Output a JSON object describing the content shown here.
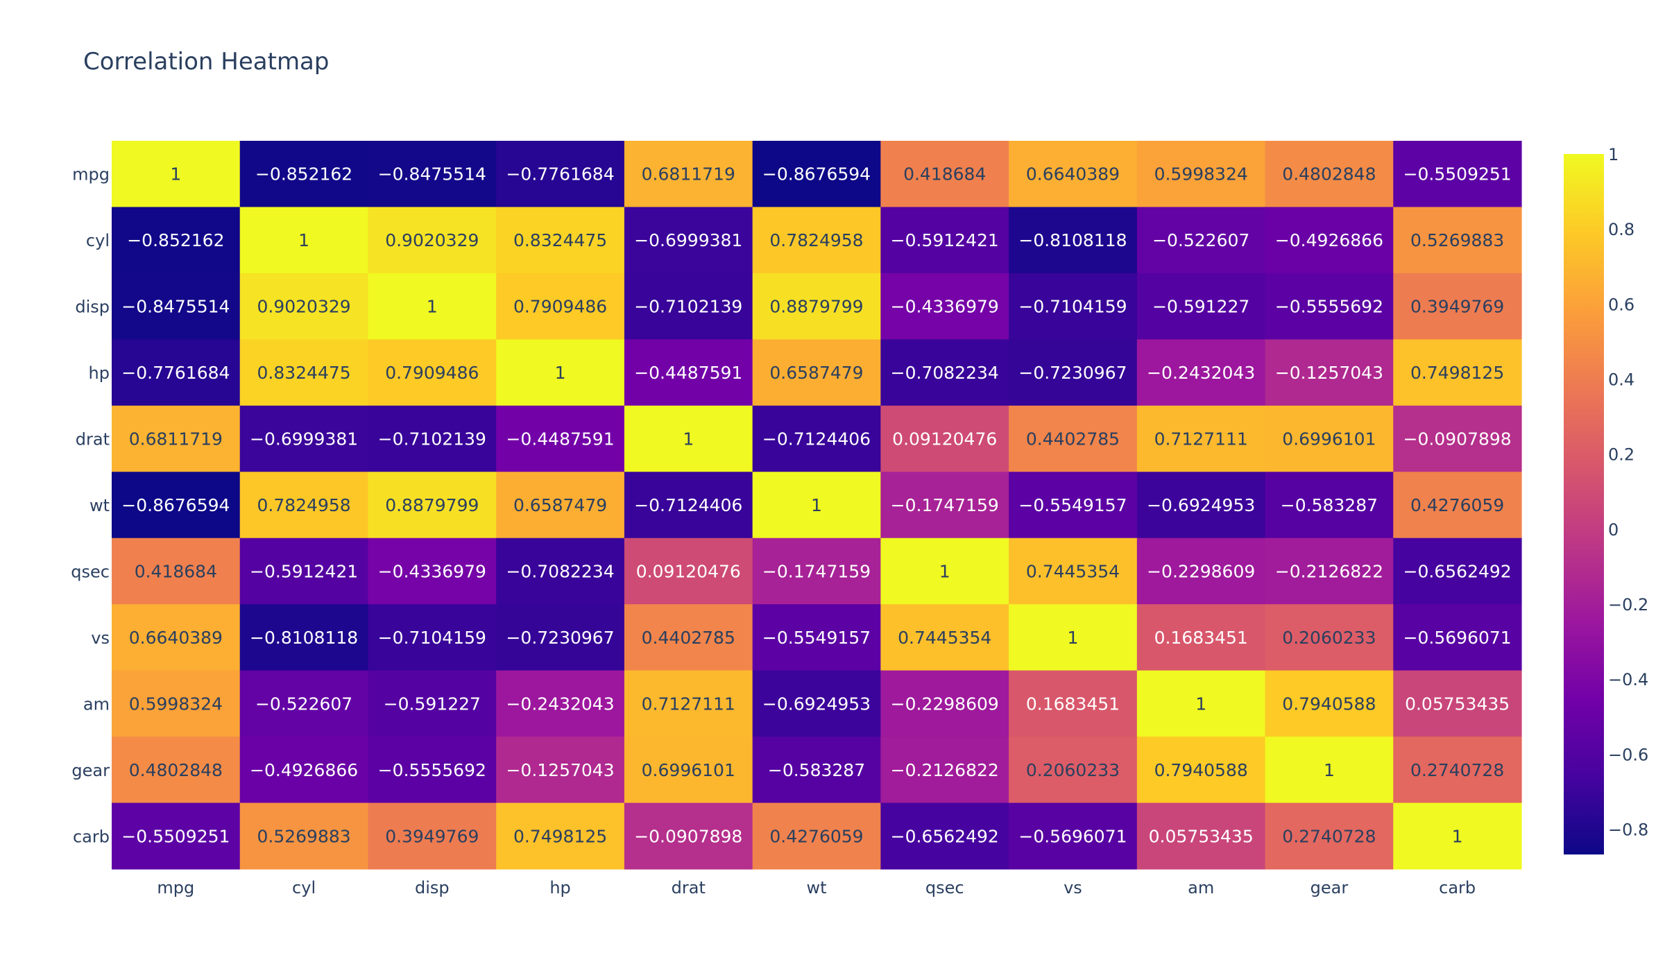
{
  "chart_data": {
    "type": "heatmap",
    "title": "Correlation Heatmap",
    "x": [
      "mpg",
      "cyl",
      "disp",
      "hp",
      "drat",
      "wt",
      "qsec",
      "vs",
      "am",
      "gear",
      "carb"
    ],
    "y": [
      "mpg",
      "cyl",
      "disp",
      "hp",
      "drat",
      "wt",
      "qsec",
      "vs",
      "am",
      "gear",
      "carb"
    ],
    "z": [
      [
        "1",
        "−0.852162",
        "−0.8475514",
        "−0.7761684",
        "0.6811719",
        "−0.8676594",
        "0.418684",
        "0.6640389",
        "0.5998324",
        "0.4802848",
        "−0.5509251"
      ],
      [
        "−0.852162",
        "1",
        "0.9020329",
        "0.8324475",
        "−0.6999381",
        "0.7824958",
        "−0.5912421",
        "−0.8108118",
        "−0.522607",
        "−0.4926866",
        "0.5269883"
      ],
      [
        "−0.8475514",
        "0.9020329",
        "1",
        "0.7909486",
        "−0.7102139",
        "0.8879799",
        "−0.4336979",
        "−0.7104159",
        "−0.591227",
        "−0.5555692",
        "0.3949769"
      ],
      [
        "−0.7761684",
        "0.8324475",
        "0.7909486",
        "1",
        "−0.4487591",
        "0.6587479",
        "−0.7082234",
        "−0.7230967",
        "−0.2432043",
        "−0.1257043",
        "0.7498125"
      ],
      [
        "0.6811719",
        "−0.6999381",
        "−0.7102139",
        "−0.4487591",
        "1",
        "−0.7124406",
        "0.09120476",
        "0.4402785",
        "0.7127111",
        "0.6996101",
        "−0.0907898"
      ],
      [
        "−0.8676594",
        "0.7824958",
        "0.8879799",
        "0.6587479",
        "−0.7124406",
        "1",
        "−0.1747159",
        "−0.5549157",
        "−0.6924953",
        "−0.583287",
        "0.4276059"
      ],
      [
        "0.418684",
        "−0.5912421",
        "−0.4336979",
        "−0.7082234",
        "0.09120476",
        "−0.1747159",
        "1",
        "0.7445354",
        "−0.2298609",
        "−0.2126822",
        "−0.6562492"
      ],
      [
        "0.6640389",
        "−0.8108118",
        "−0.7104159",
        "−0.7230967",
        "0.4402785",
        "−0.5549157",
        "0.7445354",
        "1",
        "0.1683451",
        "0.2060233",
        "−0.5696071"
      ],
      [
        "0.5998324",
        "−0.522607",
        "−0.591227",
        "−0.2432043",
        "0.7127111",
        "−0.6924953",
        "−0.2298609",
        "0.1683451",
        "1",
        "0.7940588",
        "0.05753435"
      ],
      [
        "0.4802848",
        "−0.4926866",
        "−0.5555692",
        "−0.1257043",
        "0.6996101",
        "−0.583287",
        "−0.2126822",
        "0.2060233",
        "0.7940588",
        "1",
        "0.2740728"
      ],
      [
        "−0.5509251",
        "0.5269883",
        "0.3949769",
        "0.7498125",
        "−0.0907898",
        "0.4276059",
        "−0.6562492",
        "−0.5696071",
        "0.05753435",
        "0.2740728",
        "1"
      ]
    ],
    "zrange": [
      -0.8676594,
      1
    ],
    "colorscale": [
      "#0d0887",
      "#46039f",
      "#7201a8",
      "#9c179e",
      "#bd3786",
      "#d8576b",
      "#ed7953",
      "#fb9f3a",
      "#fdca26",
      "#f0f921"
    ],
    "colorbar": {
      "ticks": [
        1,
        0.8,
        0.6,
        0.4,
        0.2,
        0,
        -0.2,
        -0.4,
        -0.6,
        -0.8
      ],
      "tick_labels": [
        "1",
        "0.8",
        "0.6",
        "0.4",
        "0.2",
        "0",
        "−0.2",
        "−0.4",
        "−0.6",
        "−0.8"
      ]
    },
    "text_colors": {
      "dark": "#2a3f5f",
      "light": "#ffffff"
    }
  }
}
